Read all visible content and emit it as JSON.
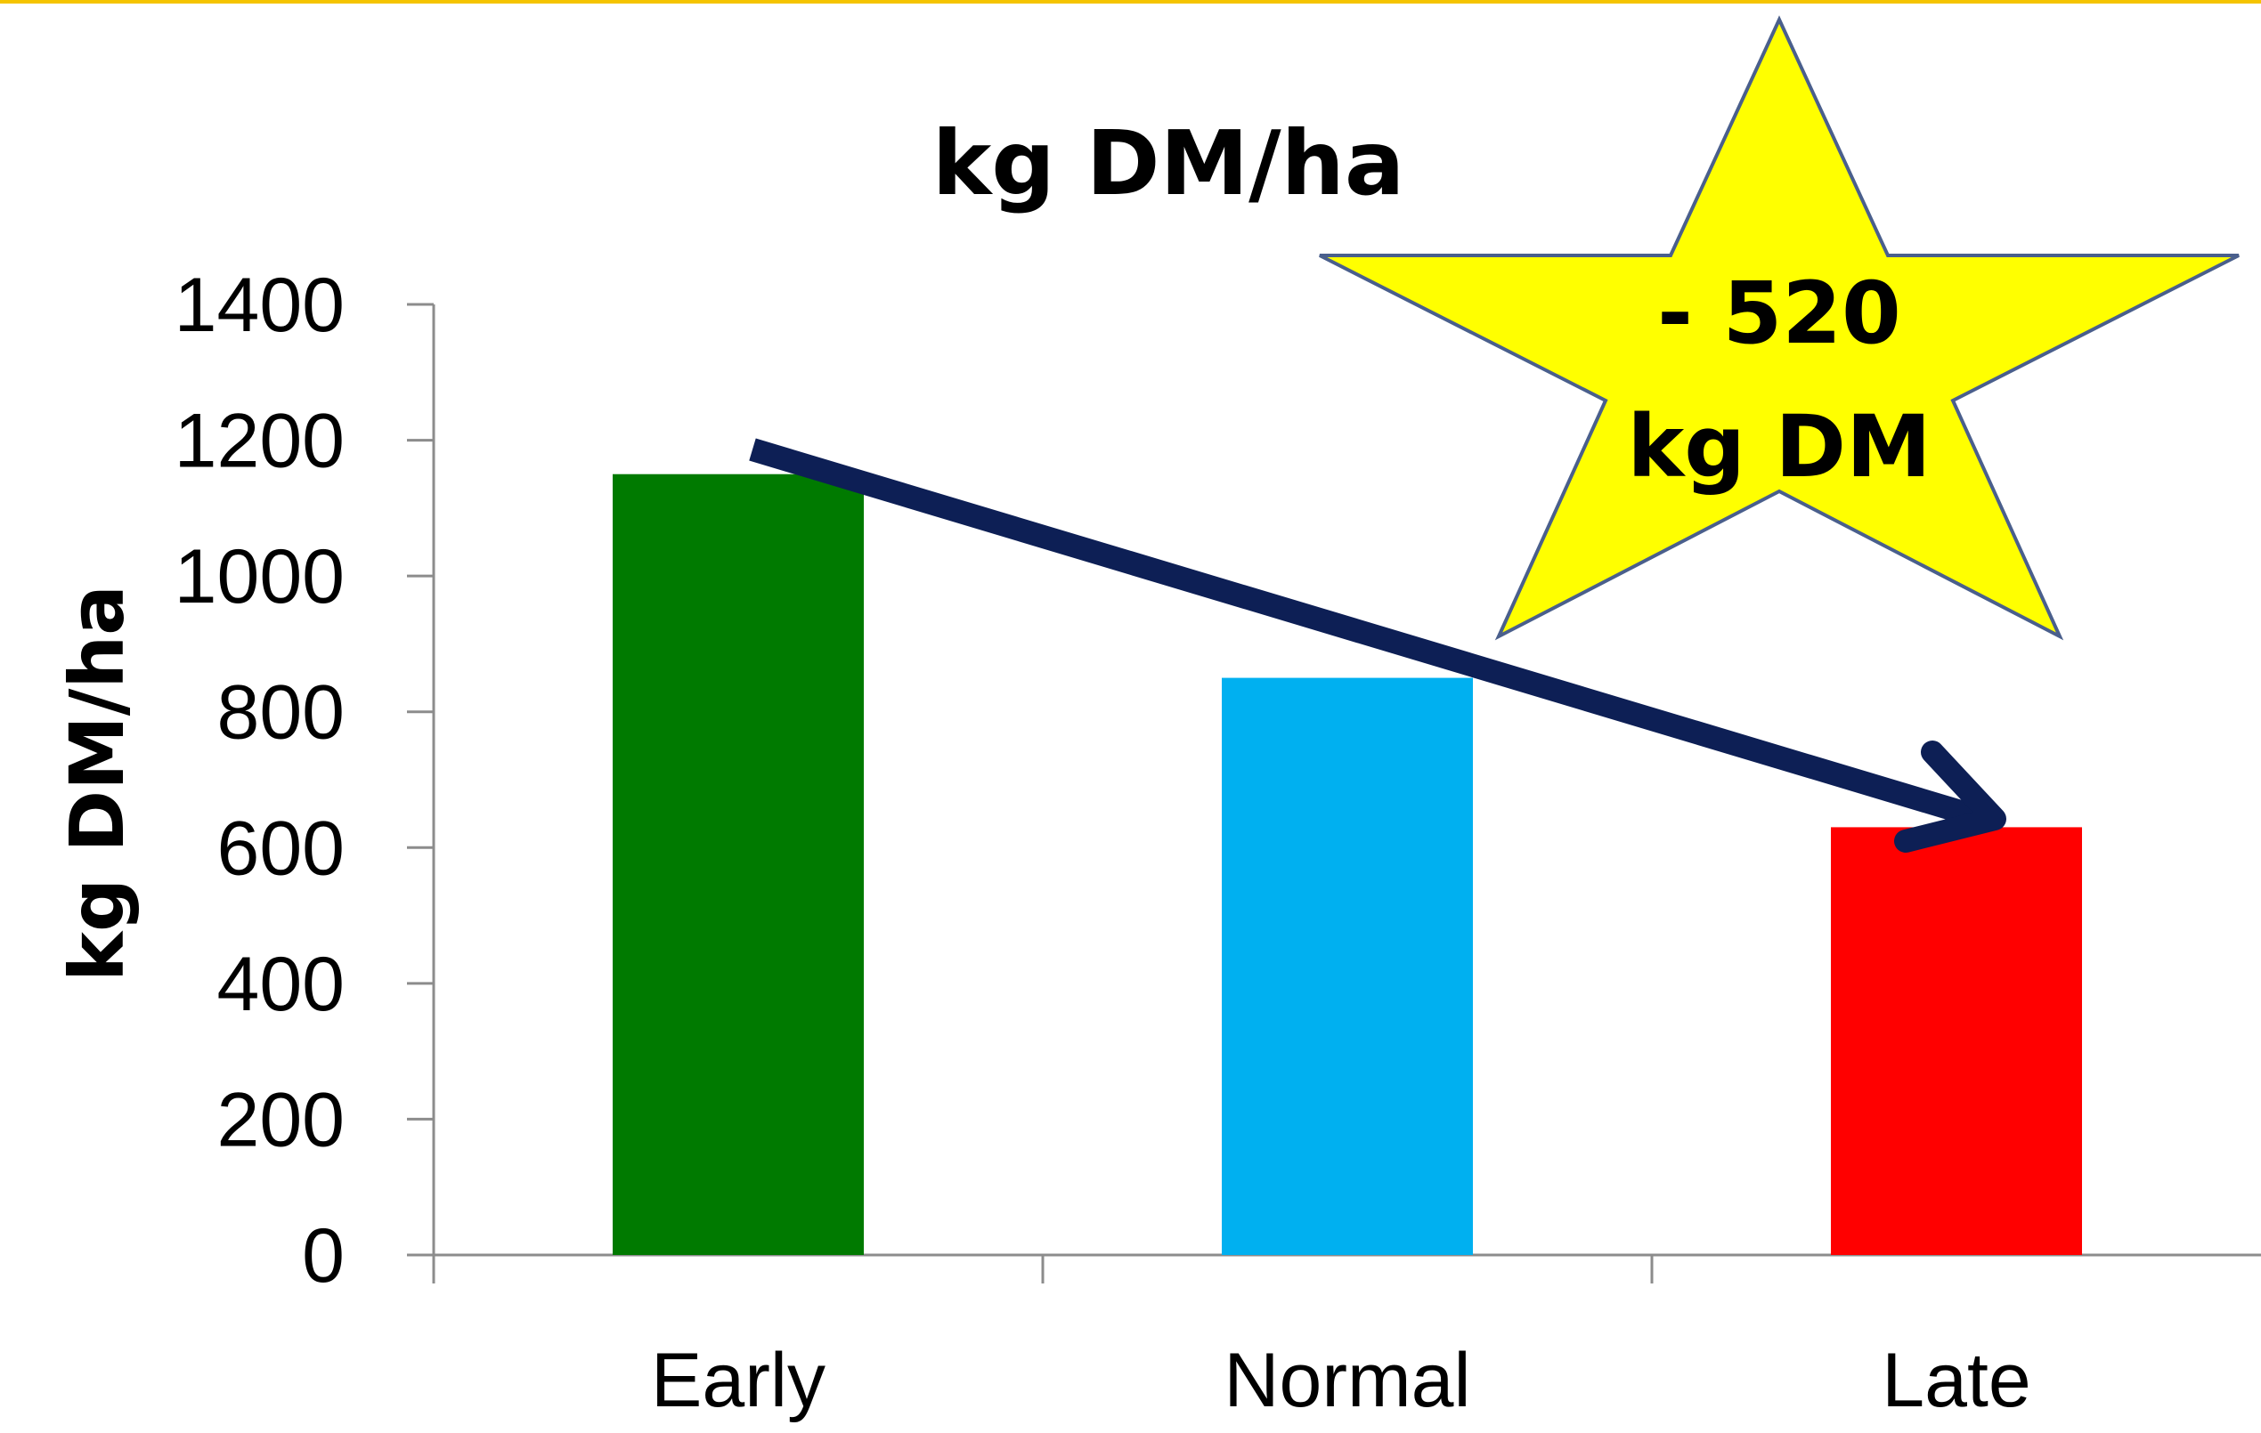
{
  "chart_data": {
    "type": "bar",
    "title": "kg DM/ha",
    "xlabel": "",
    "ylabel": "kg DM/ha",
    "categories": [
      "Early",
      "Normal",
      "Late"
    ],
    "values": [
      1150,
      850,
      630
    ],
    "colors": [
      "#007a00",
      "#00b0f0",
      "#ff0000"
    ],
    "ylim": [
      0,
      1400
    ],
    "yticks": [
      "0",
      "200",
      "400",
      "600",
      "800",
      "1000",
      "1200",
      "1400"
    ],
    "grid": false,
    "legend": "none",
    "annotation": {
      "line1": "- 520",
      "line2": "kg DM",
      "star_color": "#ffff00",
      "arrow_color": "#0d1f55"
    },
    "top_rule_color": "#f5c400"
  }
}
